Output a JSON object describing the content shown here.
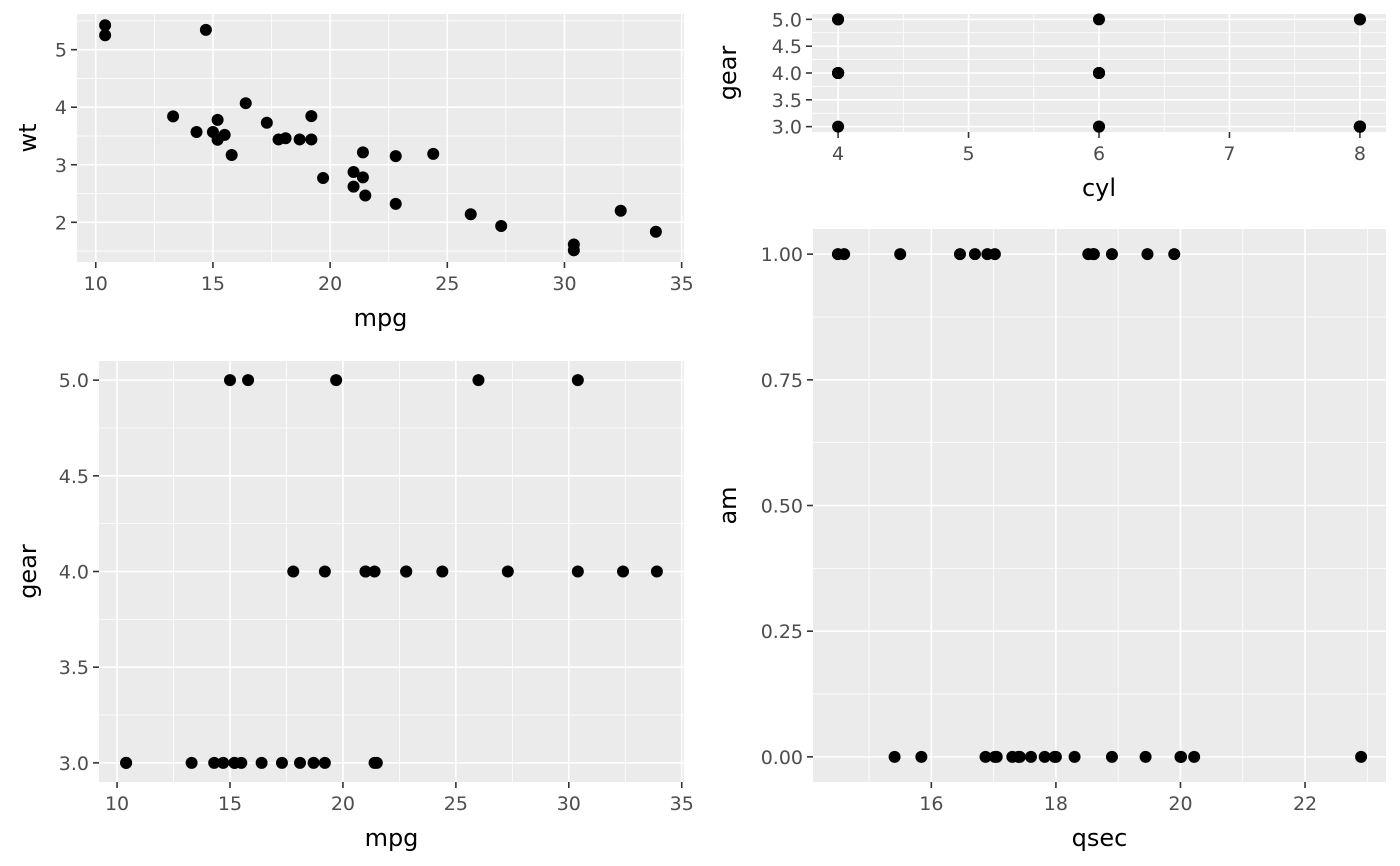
{
  "chart_data": [
    {
      "type": "scatter",
      "title": "",
      "xlabel": "mpg",
      "ylabel": "wt",
      "xlim": [
        9.2,
        35.1
      ],
      "ylim": [
        1.31,
        5.62
      ],
      "x_ticks": [
        10,
        15,
        20,
        25,
        30,
        35
      ],
      "y_ticks": [
        2,
        3,
        4,
        5
      ],
      "x_tick_labels": [
        "10",
        "15",
        "20",
        "25",
        "30",
        "35"
      ],
      "y_tick_labels": [
        "2",
        "3",
        "4",
        "5"
      ],
      "grid": true,
      "x": [
        21.0,
        21.0,
        22.8,
        21.4,
        18.7,
        18.1,
        14.3,
        24.4,
        22.8,
        19.2,
        17.8,
        16.4,
        17.3,
        15.2,
        10.4,
        10.4,
        14.7,
        32.4,
        30.4,
        33.9,
        21.5,
        15.5,
        15.2,
        13.3,
        19.2,
        27.3,
        26.0,
        30.4,
        15.8,
        19.7,
        15.0,
        21.4
      ],
      "y": [
        2.62,
        2.875,
        2.32,
        3.215,
        3.44,
        3.46,
        3.57,
        3.19,
        3.15,
        3.44,
        3.44,
        4.07,
        3.73,
        3.78,
        5.25,
        5.424,
        5.345,
        2.2,
        1.615,
        1.835,
        2.465,
        3.52,
        3.435,
        3.84,
        3.845,
        1.935,
        2.14,
        1.513,
        3.17,
        2.77,
        3.57,
        2.78
      ]
    },
    {
      "type": "scatter",
      "title": "",
      "xlabel": "cyl",
      "ylabel": "gear",
      "xlim": [
        3.8,
        8.2
      ],
      "ylim": [
        2.9,
        5.1
      ],
      "x_ticks": [
        4,
        5,
        6,
        7,
        8
      ],
      "y_ticks": [
        3.0,
        3.5,
        4.0,
        4.5,
        5.0
      ],
      "x_tick_labels": [
        "4",
        "5",
        "6",
        "7",
        "8"
      ],
      "y_tick_labels": [
        "3.0",
        "3.5",
        "4.0",
        "4.5",
        "5.0"
      ],
      "grid": true,
      "x": [
        6,
        6,
        4,
        6,
        8,
        6,
        8,
        4,
        4,
        6,
        6,
        8,
        8,
        8,
        8,
        8,
        8,
        4,
        4,
        4,
        4,
        8,
        8,
        8,
        8,
        4,
        4,
        4,
        8,
        6,
        8,
        4
      ],
      "y": [
        4,
        4,
        4,
        3,
        3,
        3,
        3,
        4,
        4,
        4,
        4,
        3,
        3,
        3,
        3,
        3,
        3,
        4,
        4,
        4,
        3,
        3,
        3,
        3,
        3,
        4,
        5,
        5,
        5,
        5,
        5,
        4
      ]
    },
    {
      "type": "scatter",
      "title": "",
      "xlabel": "mpg",
      "ylabel": "gear",
      "xlim": [
        9.2,
        35.1
      ],
      "ylim": [
        2.9,
        5.1
      ],
      "x_ticks": [
        10,
        15,
        20,
        25,
        30,
        35
      ],
      "y_ticks": [
        3.0,
        3.5,
        4.0,
        4.5,
        5.0
      ],
      "x_tick_labels": [
        "10",
        "15",
        "20",
        "25",
        "30",
        "35"
      ],
      "y_tick_labels": [
        "3.0",
        "3.5",
        "4.0",
        "4.5",
        "5.0"
      ],
      "grid": true,
      "x": [
        21.0,
        21.0,
        22.8,
        21.4,
        18.7,
        18.1,
        14.3,
        24.4,
        22.8,
        19.2,
        17.8,
        16.4,
        17.3,
        15.2,
        10.4,
        10.4,
        14.7,
        32.4,
        30.4,
        33.9,
        21.5,
        15.5,
        15.2,
        13.3,
        19.2,
        27.3,
        26.0,
        30.4,
        15.8,
        19.7,
        15.0,
        21.4
      ],
      "y": [
        4,
        4,
        4,
        3,
        3,
        3,
        3,
        4,
        4,
        4,
        4,
        3,
        3,
        3,
        3,
        3,
        3,
        4,
        4,
        4,
        3,
        3,
        3,
        3,
        3,
        4,
        5,
        5,
        5,
        5,
        5,
        4
      ]
    },
    {
      "type": "scatter",
      "title": "",
      "xlabel": "qsec",
      "ylabel": "am",
      "xlim": [
        14.1,
        23.3
      ],
      "ylim": [
        -0.05,
        1.05
      ],
      "x_ticks": [
        16,
        18,
        20,
        22
      ],
      "y_ticks": [
        0.0,
        0.25,
        0.5,
        0.75,
        1.0
      ],
      "x_tick_labels": [
        "16",
        "18",
        "20",
        "22"
      ],
      "y_tick_labels": [
        "0.00",
        "0.25",
        "0.50",
        "0.75",
        "1.00"
      ],
      "grid": true,
      "x": [
        16.46,
        17.02,
        18.61,
        19.44,
        17.02,
        20.22,
        15.84,
        20.0,
        22.9,
        18.3,
        18.9,
        17.4,
        17.6,
        18.0,
        17.98,
        17.82,
        17.42,
        19.47,
        18.52,
        19.9,
        20.01,
        16.87,
        17.3,
        15.41,
        17.05,
        18.9,
        16.7,
        16.9,
        14.5,
        15.5,
        14.6,
        18.6
      ],
      "y": [
        1,
        1,
        1,
        0,
        0,
        0,
        0,
        0,
        0,
        0,
        0,
        0,
        0,
        0,
        0,
        0,
        0,
        1,
        1,
        1,
        0,
        0,
        0,
        0,
        0,
        1,
        1,
        1,
        1,
        1,
        1,
        1
      ]
    }
  ]
}
